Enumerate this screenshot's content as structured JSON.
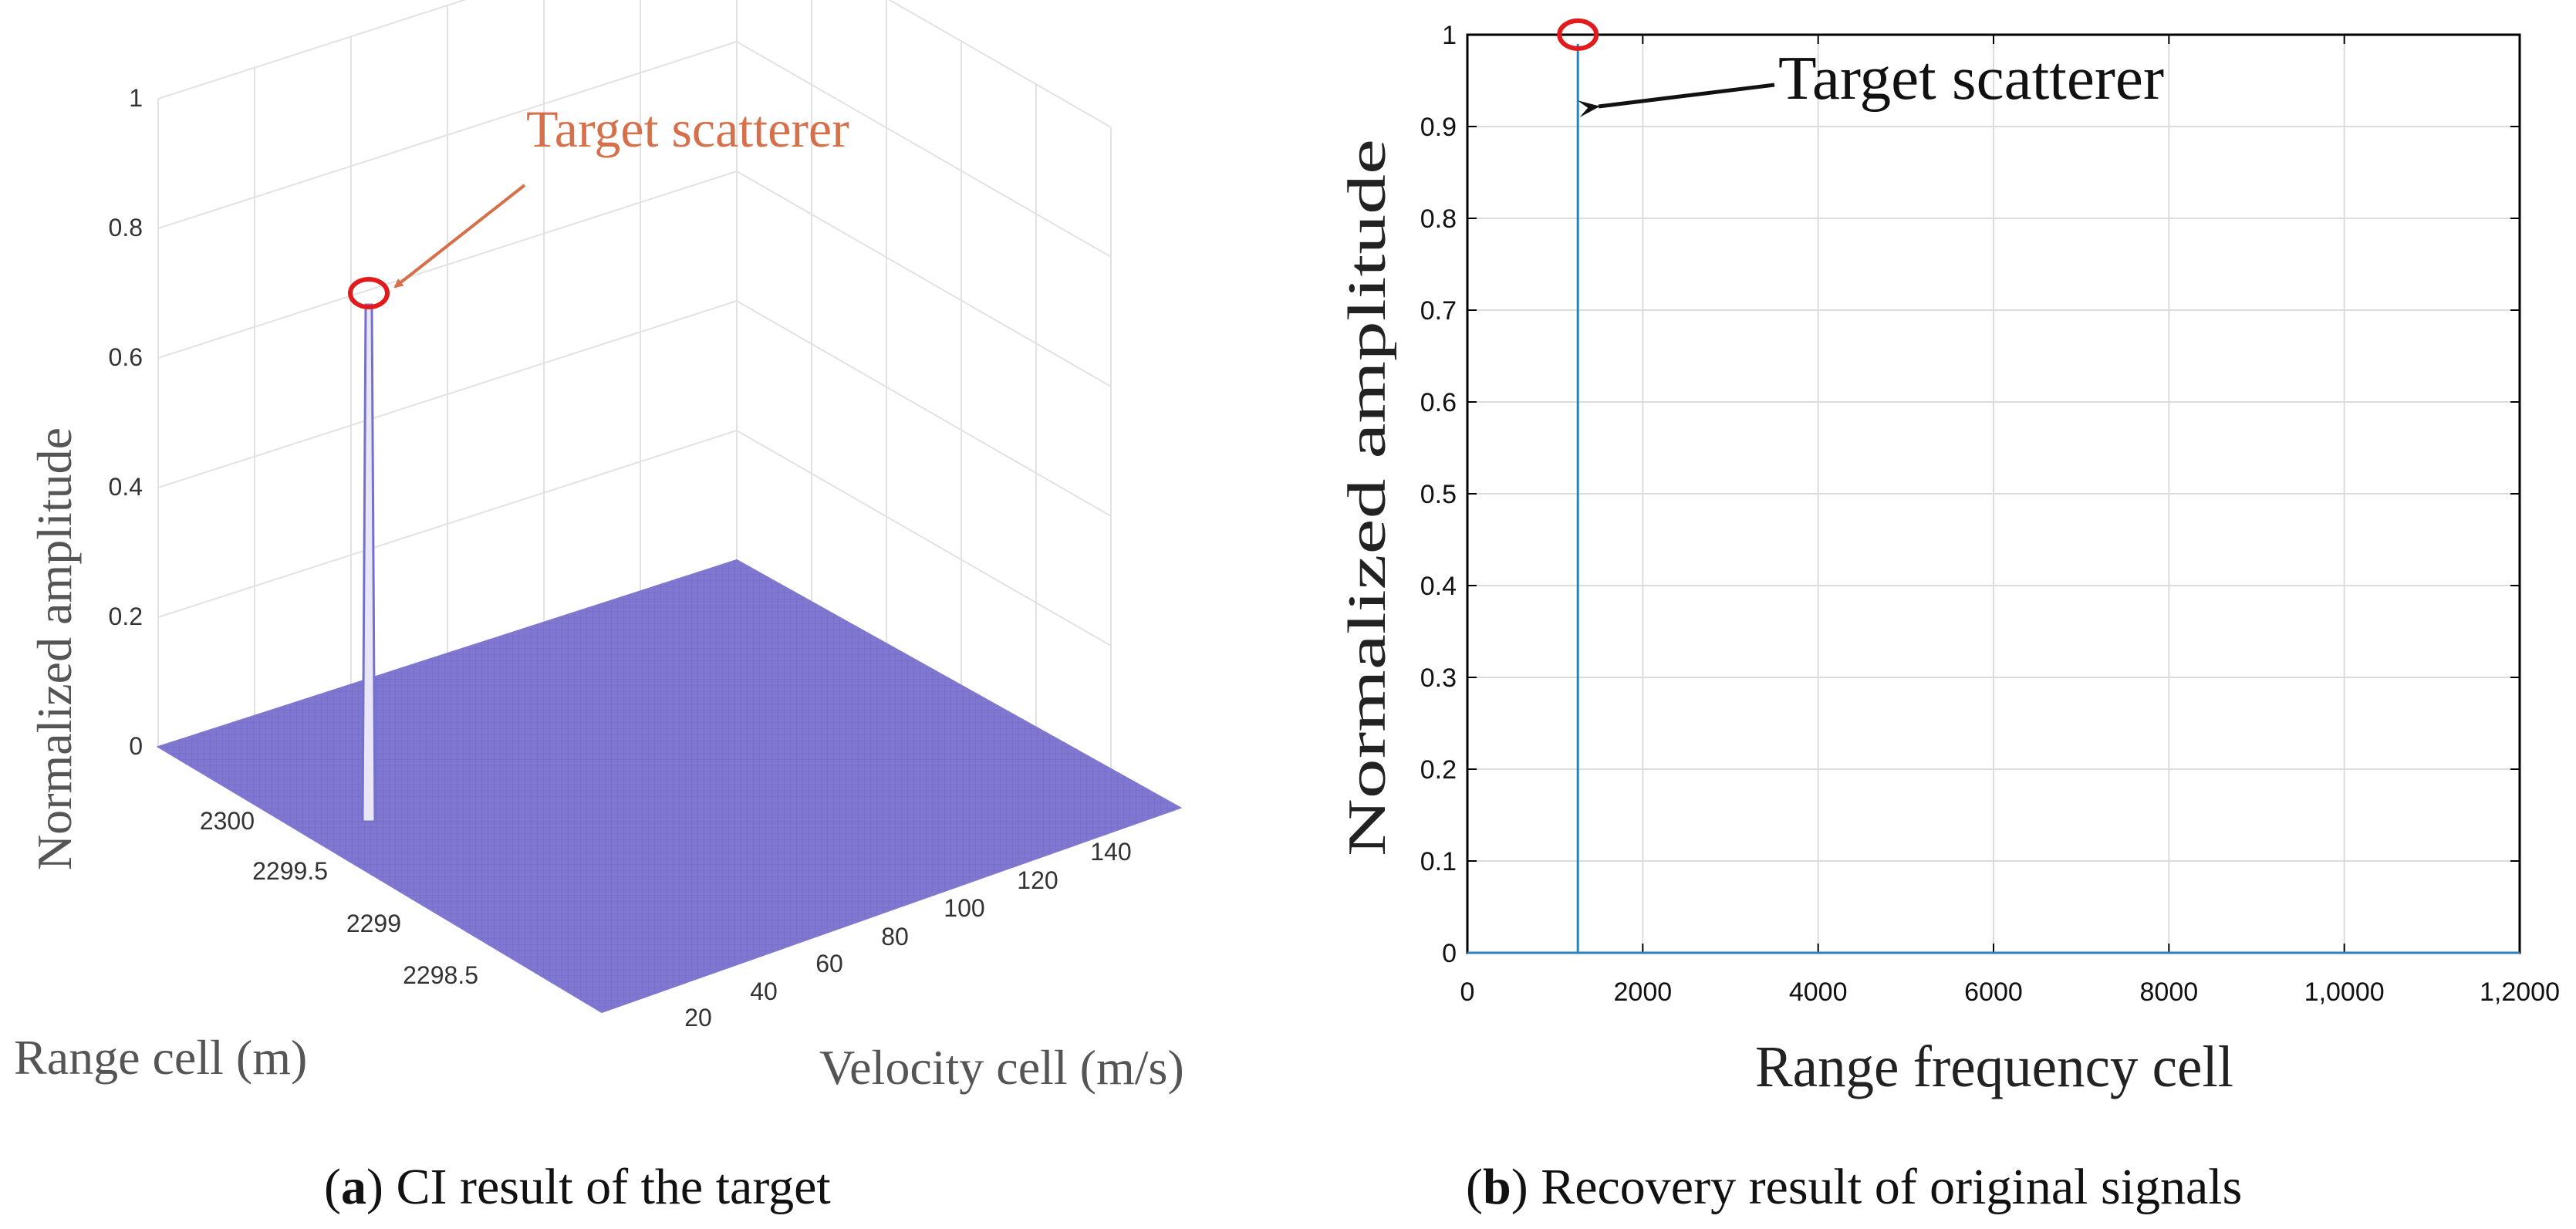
{
  "colors": {
    "surface": "#8078d0",
    "surface_mesh": "#6f67c4",
    "line": "#2b83ba",
    "marker": "#e31a1c",
    "annotation_a": "#d6704a",
    "annotation_b": "#111111",
    "grid": "#dcdcdc"
  },
  "chart_data": [
    {
      "type": "surface",
      "caption_label": "a",
      "caption_text": " CI result of the target",
      "zlabel": "Normalized amplitude",
      "xlabel": "Range cell (m)",
      "ylabel": "Velocity cell (m/s)",
      "z_ticks": [
        "0",
        "0.2",
        "0.4",
        "0.6",
        "0.8",
        "1"
      ],
      "x_ticks": [
        "2300",
        "2299.5",
        "2299",
        "2298.5"
      ],
      "y_ticks": [
        "20",
        "40",
        "60",
        "80",
        "100",
        "120",
        "140"
      ],
      "zlim": [
        0,
        1
      ],
      "peak": {
        "range": 2299.9,
        "velocity": 5,
        "amplitude": 1
      },
      "annotation": "Target scatterer",
      "grid": true
    },
    {
      "type": "line",
      "caption_label": "b",
      "caption_text": " Recovery result of original signals",
      "xlabel": "Range frequency cell",
      "ylabel": "Normalized amplitude",
      "xlim": [
        0,
        12000
      ],
      "ylim": [
        0,
        1
      ],
      "x_ticks": [
        "0",
        "2000",
        "4000",
        "6000",
        "8000",
        "1,0000",
        "1,2000"
      ],
      "y_ticks": [
        "0",
        "0.1",
        "0.2",
        "0.3",
        "0.4",
        "0.5",
        "0.6",
        "0.7",
        "0.8",
        "0.9",
        "1"
      ],
      "series": [
        {
          "x": [
            0,
            1260,
            1260,
            1260,
            12000
          ],
          "y": [
            0,
            0,
            0.99,
            0,
            0
          ]
        }
      ],
      "peak": {
        "x": 1260,
        "y": 0.99
      },
      "annotation": "Target scatterer",
      "grid": true
    }
  ]
}
